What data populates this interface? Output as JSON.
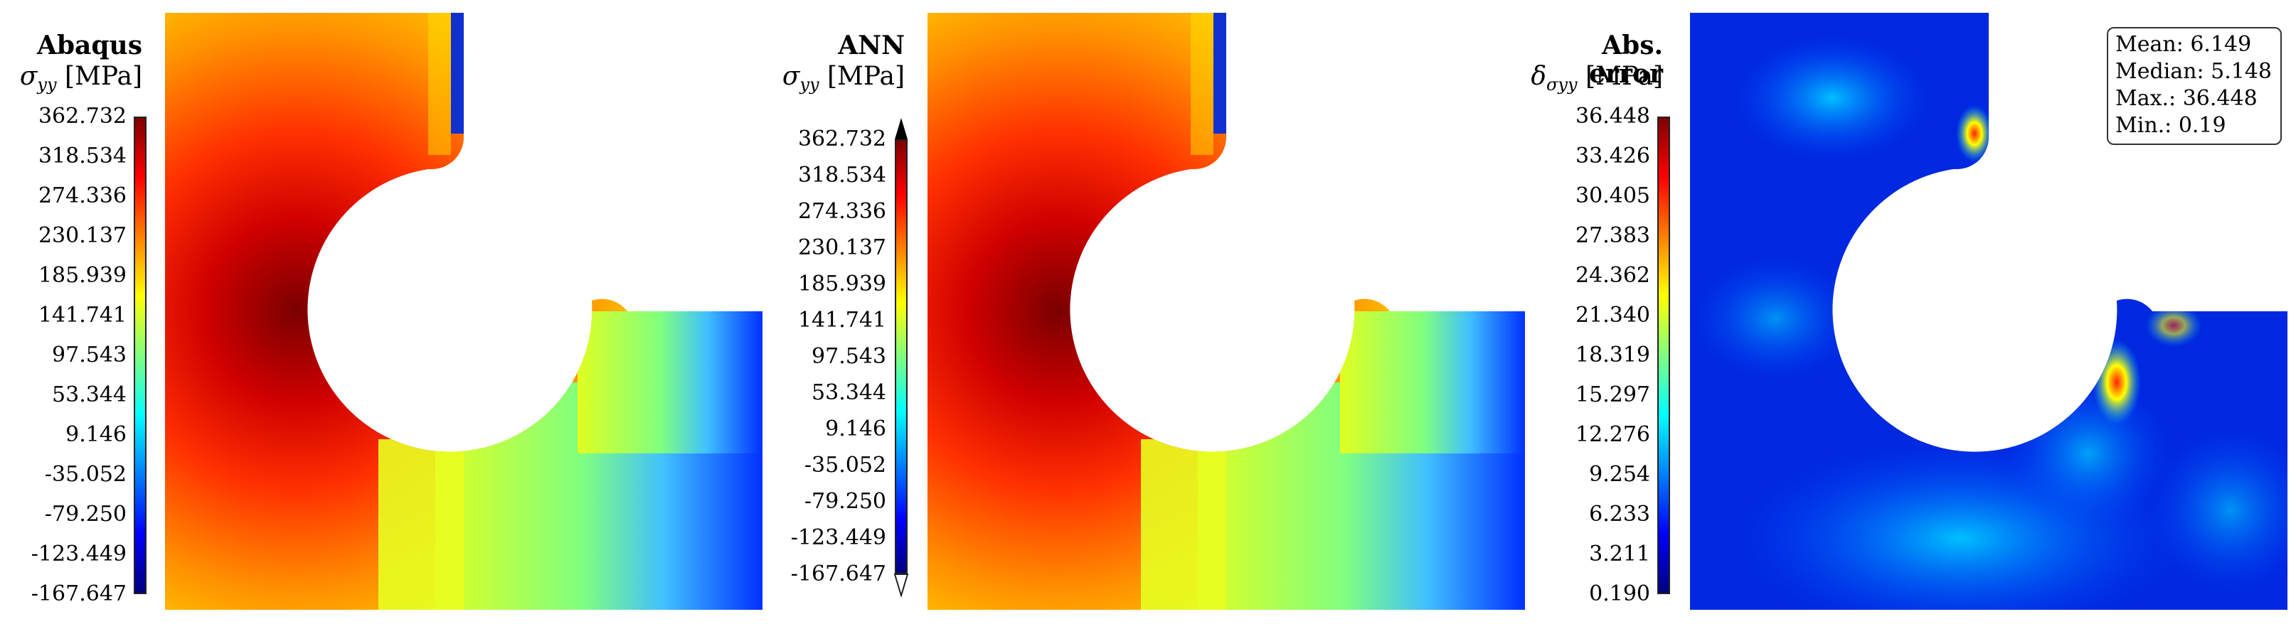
{
  "panels": [
    {
      "title": "Abaqus",
      "symbol": "σ",
      "subscript": "yy",
      "unit": "[MPa]",
      "colorbar_ticks": [
        "362.732",
        "318.534",
        "274.336",
        "230.137",
        "185.939",
        "141.741",
        "97.543",
        "53.344",
        "9.146",
        "-35.052",
        "-79.250",
        "-123.449",
        "-167.647"
      ],
      "colorbar_extended": false
    },
    {
      "title": "ANN",
      "symbol": "σ",
      "subscript": "yy",
      "unit": "[MPa]",
      "colorbar_ticks": [
        "362.732",
        "318.534",
        "274.336",
        "230.137",
        "185.939",
        "141.741",
        "97.543",
        "53.344",
        "9.146",
        "-35.052",
        "-79.250",
        "-123.449",
        "-167.647"
      ],
      "colorbar_extended": true
    },
    {
      "title": "Abs. error",
      "symbol": "δ",
      "subscript": "σyy",
      "unit": "[MPa]",
      "colorbar_ticks": [
        "36.448",
        "33.426",
        "30.405",
        "27.383",
        "24.362",
        "21.340",
        "18.319",
        "15.297",
        "12.276",
        "9.254",
        "6.233",
        "3.211",
        "0.190"
      ],
      "colorbar_extended": false
    }
  ],
  "stats": {
    "mean": "Mean: 6.149",
    "median": "Median: 5.148",
    "max": "Max.: 36.448",
    "min": "Min.: 0.19"
  },
  "colormap": "jet"
}
